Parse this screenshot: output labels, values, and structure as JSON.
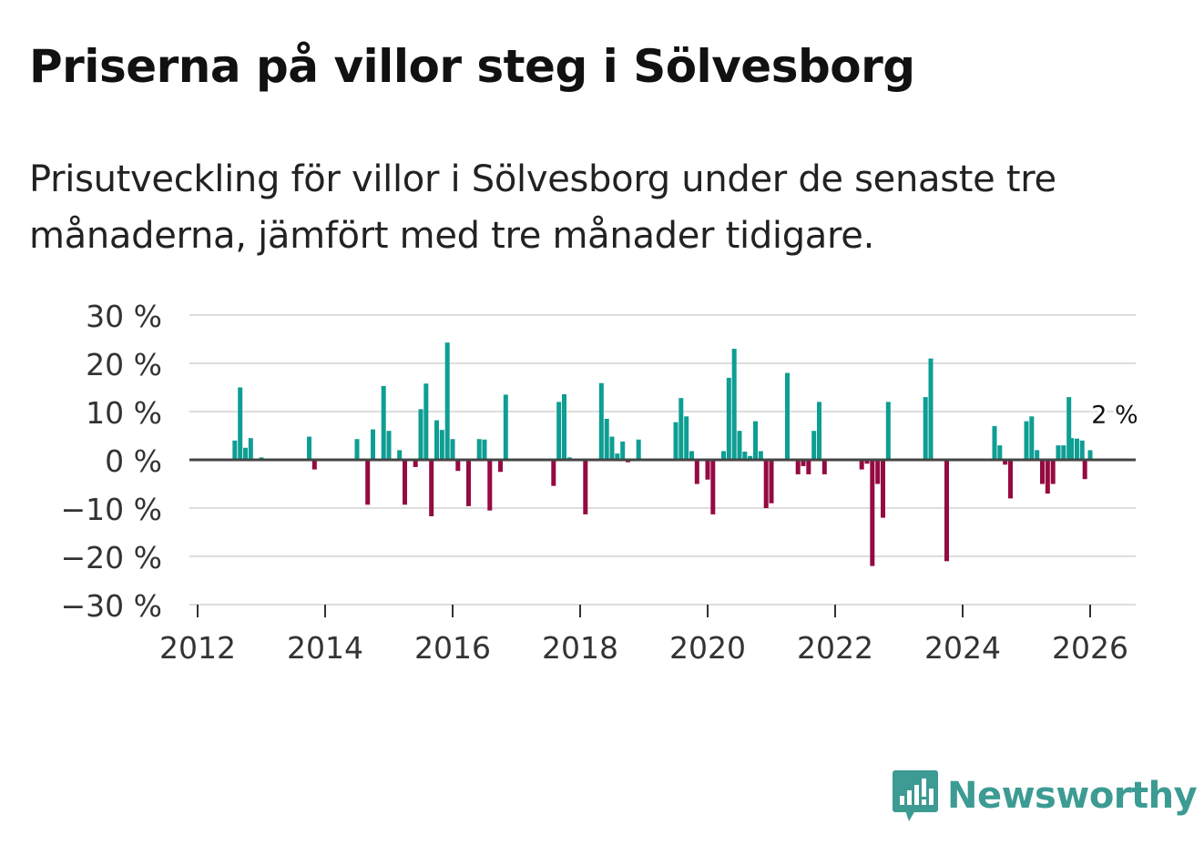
{
  "header": {
    "title": "Priserna på villor steg i Sölvesborg",
    "subtitle": "Prisutveckling för villor i Sölvesborg under de senaste tre månaderna, jämfört med tre månader tidigare."
  },
  "brand": {
    "name": "Newsworthy",
    "logo_icon": "bar-chart-speech-bubble-icon"
  },
  "colors": {
    "positive": "#0e9e93",
    "negative": "#950a41",
    "zero_line": "#444444",
    "grid": "#dddddd",
    "axis_text": "#333333",
    "brand": "#3c9b93"
  },
  "chart_data": {
    "type": "bar",
    "title": "Priserna på villor steg i Sölvesborg",
    "xlabel": "",
    "ylabel": "",
    "ylim": [
      -30,
      30
    ],
    "xlim": [
      2011.85,
      2026.7
    ],
    "y_ticks": [
      30,
      20,
      10,
      0,
      -10,
      -20,
      -30
    ],
    "y_tick_labels": [
      "30 %",
      "20 %",
      "10 %",
      "0 %",
      "−10 %",
      "−20 %",
      "−30 %"
    ],
    "x_ticks": [
      2012,
      2014,
      2016,
      2018,
      2020,
      2022,
      2024,
      2026
    ],
    "x_tick_labels": [
      "2012",
      "2014",
      "2016",
      "2018",
      "2020",
      "2022",
      "2024",
      "2026"
    ],
    "grid": true,
    "annotation": {
      "text": "2 %",
      "x": 2026.0,
      "value": 2
    },
    "series": [
      {
        "name": "Prisutveckling",
        "points": [
          {
            "x": 2012.583,
            "v": 4
          },
          {
            "x": 2012.667,
            "v": 15
          },
          {
            "x": 2012.75,
            "v": 2.5
          },
          {
            "x": 2012.833,
            "v": 4.5
          },
          {
            "x": 2013.0,
            "v": 0.5
          },
          {
            "x": 2013.75,
            "v": 4.8
          },
          {
            "x": 2013.833,
            "v": -2
          },
          {
            "x": 2014.5,
            "v": 4.3
          },
          {
            "x": 2014.667,
            "v": -9.3
          },
          {
            "x": 2014.75,
            "v": 6.3
          },
          {
            "x": 2014.917,
            "v": 15.3
          },
          {
            "x": 2015.0,
            "v": 6
          },
          {
            "x": 2015.167,
            "v": 2
          },
          {
            "x": 2015.25,
            "v": -9.3
          },
          {
            "x": 2015.417,
            "v": -1.5
          },
          {
            "x": 2015.5,
            "v": 10.5
          },
          {
            "x": 2015.583,
            "v": 15.8
          },
          {
            "x": 2015.667,
            "v": -11.7
          },
          {
            "x": 2015.75,
            "v": 8.2
          },
          {
            "x": 2015.833,
            "v": 6.2
          },
          {
            "x": 2015.917,
            "v": 24.3
          },
          {
            "x": 2016.0,
            "v": 4.3
          },
          {
            "x": 2016.083,
            "v": -2.3
          },
          {
            "x": 2016.25,
            "v": -9.6
          },
          {
            "x": 2016.417,
            "v": 4.3
          },
          {
            "x": 2016.5,
            "v": 4.2
          },
          {
            "x": 2016.583,
            "v": -10.5
          },
          {
            "x": 2016.75,
            "v": -2.5
          },
          {
            "x": 2016.833,
            "v": 13.5
          },
          {
            "x": 2017.583,
            "v": -5.4
          },
          {
            "x": 2017.667,
            "v": 12
          },
          {
            "x": 2017.75,
            "v": 13.6
          },
          {
            "x": 2017.833,
            "v": 0.5
          },
          {
            "x": 2018.083,
            "v": -11.3
          },
          {
            "x": 2018.333,
            "v": 15.9
          },
          {
            "x": 2018.417,
            "v": 8.5
          },
          {
            "x": 2018.5,
            "v": 4.8
          },
          {
            "x": 2018.583,
            "v": 1.3
          },
          {
            "x": 2018.667,
            "v": 3.8
          },
          {
            "x": 2018.75,
            "v": -0.5
          },
          {
            "x": 2018.917,
            "v": 4.2
          },
          {
            "x": 2019.5,
            "v": 7.8
          },
          {
            "x": 2019.583,
            "v": 12.8
          },
          {
            "x": 2019.667,
            "v": 9
          },
          {
            "x": 2019.75,
            "v": 1.8
          },
          {
            "x": 2019.833,
            "v": -5
          },
          {
            "x": 2020.0,
            "v": -4.1
          },
          {
            "x": 2020.083,
            "v": -11.3
          },
          {
            "x": 2020.25,
            "v": 1.8
          },
          {
            "x": 2020.333,
            "v": 17
          },
          {
            "x": 2020.417,
            "v": 23
          },
          {
            "x": 2020.5,
            "v": 6
          },
          {
            "x": 2020.583,
            "v": 1.7
          },
          {
            "x": 2020.667,
            "v": 0.8
          },
          {
            "x": 2020.75,
            "v": 8
          },
          {
            "x": 2020.833,
            "v": 1.8
          },
          {
            "x": 2020.917,
            "v": -10
          },
          {
            "x": 2021.0,
            "v": -9
          },
          {
            "x": 2021.25,
            "v": 18
          },
          {
            "x": 2021.417,
            "v": -3
          },
          {
            "x": 2021.5,
            "v": -1.3
          },
          {
            "x": 2021.583,
            "v": -3
          },
          {
            "x": 2021.667,
            "v": 6
          },
          {
            "x": 2021.75,
            "v": 12
          },
          {
            "x": 2021.833,
            "v": -3
          },
          {
            "x": 2022.417,
            "v": -2
          },
          {
            "x": 2022.5,
            "v": -0.8
          },
          {
            "x": 2022.583,
            "v": -22
          },
          {
            "x": 2022.667,
            "v": -5
          },
          {
            "x": 2022.75,
            "v": -12
          },
          {
            "x": 2022.833,
            "v": 12
          },
          {
            "x": 2023.417,
            "v": 13
          },
          {
            "x": 2023.5,
            "v": 21
          },
          {
            "x": 2023.75,
            "v": -21
          },
          {
            "x": 2024.5,
            "v": 7
          },
          {
            "x": 2024.583,
            "v": 3
          },
          {
            "x": 2024.667,
            "v": -1
          },
          {
            "x": 2024.75,
            "v": -8
          },
          {
            "x": 2025.0,
            "v": 8
          },
          {
            "x": 2025.083,
            "v": 9
          },
          {
            "x": 2025.167,
            "v": 2
          },
          {
            "x": 2025.25,
            "v": -5
          },
          {
            "x": 2025.333,
            "v": -7
          },
          {
            "x": 2025.417,
            "v": -5
          },
          {
            "x": 2025.5,
            "v": 3
          },
          {
            "x": 2025.583,
            "v": 3
          },
          {
            "x": 2025.667,
            "v": 13
          },
          {
            "x": 2025.708,
            "v": 4.5
          },
          {
            "x": 2025.792,
            "v": 4.4
          },
          {
            "x": 2025.875,
            "v": 4
          },
          {
            "x": 2025.917,
            "v": -4
          },
          {
            "x": 2026.0,
            "v": 2
          }
        ]
      }
    ]
  }
}
